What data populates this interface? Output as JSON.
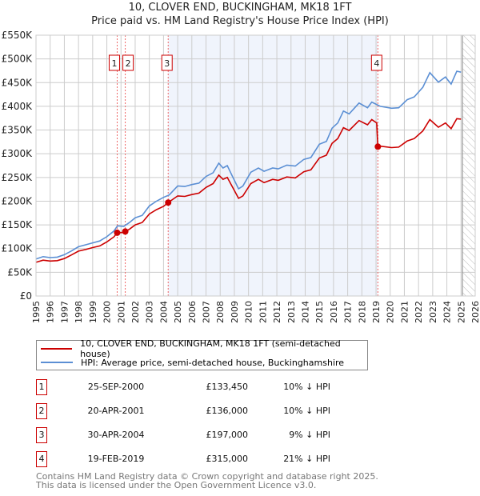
{
  "chart_data": {
    "type": "line",
    "title": "10, CLOVER END, BUCKINGHAM, MK18 1FT",
    "subtitle": "Price paid vs. HM Land Registry's House Price Index (HPI)",
    "xlim": [
      1995,
      2026
    ],
    "ylim": [
      0,
      550000
    ],
    "x_ticks": [
      "1995",
      "1996",
      "1997",
      "1998",
      "1999",
      "2000",
      "2001",
      "2002",
      "2003",
      "2004",
      "2005",
      "2006",
      "2007",
      "2008",
      "2009",
      "2010",
      "2011",
      "2012",
      "2013",
      "2014",
      "2015",
      "2016",
      "2017",
      "2018",
      "2019",
      "2020",
      "2021",
      "2022",
      "2023",
      "2024",
      "2025",
      "2026"
    ],
    "y_ticks": [
      "£0",
      "£50K",
      "£100K",
      "£150K",
      "£200K",
      "£250K",
      "£300K",
      "£350K",
      "£400K",
      "£450K",
      "£500K",
      "£550K"
    ],
    "grid": true,
    "shaded_range": [
      2004.33,
      2019.13
    ],
    "forecast_from": 2025.1,
    "series": [
      {
        "name": "10, CLOVER END, BUCKINGHAM, MK18 1FT (semi-detached house)",
        "color": "#cc0000",
        "points": [
          [
            1995,
            71
          ],
          [
            1995.5,
            75.5
          ],
          [
            1996,
            73.7
          ],
          [
            1996.5,
            74.6
          ],
          [
            1997,
            79
          ],
          [
            1997.5,
            86.5
          ],
          [
            1998,
            94.6
          ],
          [
            1998.5,
            98
          ],
          [
            1999,
            102
          ],
          [
            1999.5,
            105.6
          ],
          [
            2000,
            114
          ],
          [
            2000.5,
            124.7
          ],
          [
            2000.73,
            133.45
          ],
          [
            2001.2,
            134
          ],
          [
            2001.3,
            136
          ],
          [
            2001.6,
            141
          ],
          [
            2002,
            150
          ],
          [
            2002.5,
            155
          ],
          [
            2003,
            173
          ],
          [
            2003.5,
            182
          ],
          [
            2004,
            189
          ],
          [
            2004.33,
            197
          ],
          [
            2005,
            211
          ],
          [
            2005.5,
            210
          ],
          [
            2006,
            214
          ],
          [
            2006.5,
            217
          ],
          [
            2007,
            229
          ],
          [
            2007.5,
            237
          ],
          [
            2007.9,
            255
          ],
          [
            2008.2,
            246
          ],
          [
            2008.5,
            250
          ],
          [
            2008.9,
            228
          ],
          [
            2009.3,
            206
          ],
          [
            2009.6,
            211
          ],
          [
            2010.16,
            237
          ],
          [
            2010.7,
            246
          ],
          [
            2011.1,
            239
          ],
          [
            2011.7,
            246
          ],
          [
            2012.1,
            244
          ],
          [
            2012.7,
            251
          ],
          [
            2013.3,
            249
          ],
          [
            2013.9,
            262
          ],
          [
            2014.4,
            266
          ],
          [
            2015,
            291
          ],
          [
            2015.5,
            297
          ],
          [
            2015.9,
            322
          ],
          [
            2016.3,
            332
          ],
          [
            2016.7,
            355
          ],
          [
            2017.1,
            349
          ],
          [
            2017.8,
            370
          ],
          [
            2018.4,
            361
          ],
          [
            2018.7,
            372
          ],
          [
            2019.05,
            365
          ],
          [
            2019.13,
            315
          ],
          [
            2019.3,
            316
          ],
          [
            2020.1,
            313
          ],
          [
            2020.6,
            314
          ],
          [
            2021.2,
            327
          ],
          [
            2021.7,
            332
          ],
          [
            2022.3,
            348
          ],
          [
            2022.8,
            372
          ],
          [
            2023.4,
            356
          ],
          [
            2023.9,
            365
          ],
          [
            2024.3,
            353
          ],
          [
            2024.7,
            374
          ],
          [
            2025.0,
            373
          ]
        ]
      },
      {
        "name": "HPI: Average price, semi-detached house, Buckinghamshire",
        "color": "#5b8fd4",
        "points": [
          [
            1995,
            78
          ],
          [
            1995.5,
            83
          ],
          [
            1996,
            81
          ],
          [
            1996.5,
            82
          ],
          [
            1997,
            87
          ],
          [
            1997.5,
            95
          ],
          [
            1998,
            104
          ],
          [
            1998.5,
            108
          ],
          [
            1999,
            112
          ],
          [
            1999.5,
            116
          ],
          [
            2000,
            125
          ],
          [
            2000.5,
            137
          ],
          [
            2000.75,
            148
          ],
          [
            2001.2,
            147
          ],
          [
            2001.6,
            155
          ],
          [
            2002,
            165
          ],
          [
            2002.5,
            170
          ],
          [
            2003,
            190
          ],
          [
            2003.5,
            200
          ],
          [
            2004,
            208
          ],
          [
            2004.4,
            213
          ],
          [
            2005,
            232
          ],
          [
            2005.5,
            231
          ],
          [
            2006,
            235
          ],
          [
            2006.5,
            238
          ],
          [
            2007,
            252
          ],
          [
            2007.5,
            260
          ],
          [
            2007.9,
            280
          ],
          [
            2008.2,
            270
          ],
          [
            2008.5,
            275
          ],
          [
            2008.9,
            250
          ],
          [
            2009.3,
            226
          ],
          [
            2009.6,
            232
          ],
          [
            2010.16,
            261
          ],
          [
            2010.7,
            270
          ],
          [
            2011.1,
            263
          ],
          [
            2011.7,
            270
          ],
          [
            2012.1,
            268
          ],
          [
            2012.7,
            276
          ],
          [
            2013.3,
            274
          ],
          [
            2013.9,
            288
          ],
          [
            2014.4,
            292
          ],
          [
            2015,
            320
          ],
          [
            2015.5,
            326
          ],
          [
            2015.9,
            354
          ],
          [
            2016.3,
            365
          ],
          [
            2016.7,
            390
          ],
          [
            2017.1,
            384
          ],
          [
            2017.8,
            407
          ],
          [
            2018.4,
            397
          ],
          [
            2018.7,
            409
          ],
          [
            2019.3,
            400
          ],
          [
            2020.1,
            396
          ],
          [
            2020.6,
            397
          ],
          [
            2021.2,
            414
          ],
          [
            2021.7,
            420
          ],
          [
            2022.3,
            440
          ],
          [
            2022.8,
            471
          ],
          [
            2023.4,
            451
          ],
          [
            2023.9,
            462
          ],
          [
            2024.3,
            447
          ],
          [
            2024.7,
            474
          ],
          [
            2025.0,
            472
          ]
        ]
      }
    ],
    "value_unit": "thousand GBP",
    "sales": [
      {
        "label": "1",
        "x": 2000.73,
        "value": 133450
      },
      {
        "label": "2",
        "x": 2001.3,
        "value": 136000
      },
      {
        "label": "3",
        "x": 2004.33,
        "value": 197000
      },
      {
        "label": "4",
        "x": 2019.13,
        "value": 315000
      }
    ],
    "legend_position": "below"
  },
  "legend": [
    {
      "label": "10, CLOVER END, BUCKINGHAM, MK18 1FT (semi-detached house)",
      "color": "#cc0000"
    },
    {
      "label": "HPI: Average price, semi-detached house, Buckinghamshire",
      "color": "#5b8fd4"
    }
  ],
  "table": [
    {
      "num": "1",
      "date": "25-SEP-2000",
      "price": "£133,450",
      "pct": "10% ↓ HPI"
    },
    {
      "num": "2",
      "date": "20-APR-2001",
      "price": "£136,000",
      "pct": "10% ↓ HPI"
    },
    {
      "num": "3",
      "date": "30-APR-2004",
      "price": "£197,000",
      "pct": "9% ↓ HPI"
    },
    {
      "num": "4",
      "date": "19-FEB-2019",
      "price": "£315,000",
      "pct": "21% ↓ HPI"
    }
  ],
  "footer": {
    "line1": "Contains HM Land Registry data © Crown copyright and database right 2025.",
    "line2": "This data is licensed under the Open Government Licence v3.0."
  }
}
